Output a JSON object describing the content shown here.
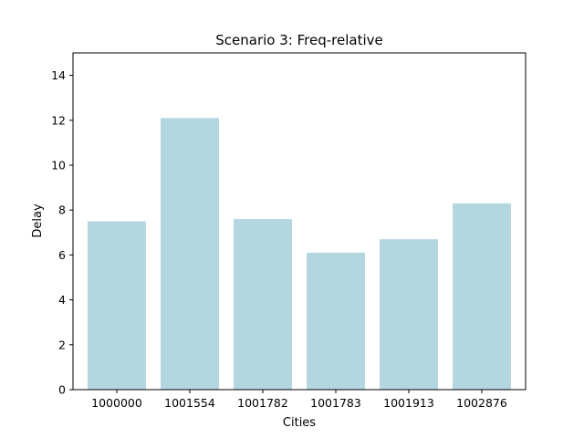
{
  "chart_data": {
    "type": "bar",
    "title": "Scenario 3: Freq-relative",
    "xlabel": "Cities",
    "ylabel": "Delay",
    "categories": [
      "1000000",
      "1001554",
      "1001782",
      "1001783",
      "1001913",
      "1002876"
    ],
    "values": [
      7.5,
      12.1,
      7.6,
      6.1,
      6.7,
      8.3
    ],
    "ylim": [
      0,
      15
    ],
    "yticks": [
      0,
      2,
      4,
      6,
      8,
      10,
      12,
      14
    ],
    "bar_color": "#b4d6e1",
    "grid": false,
    "legend": "none"
  }
}
